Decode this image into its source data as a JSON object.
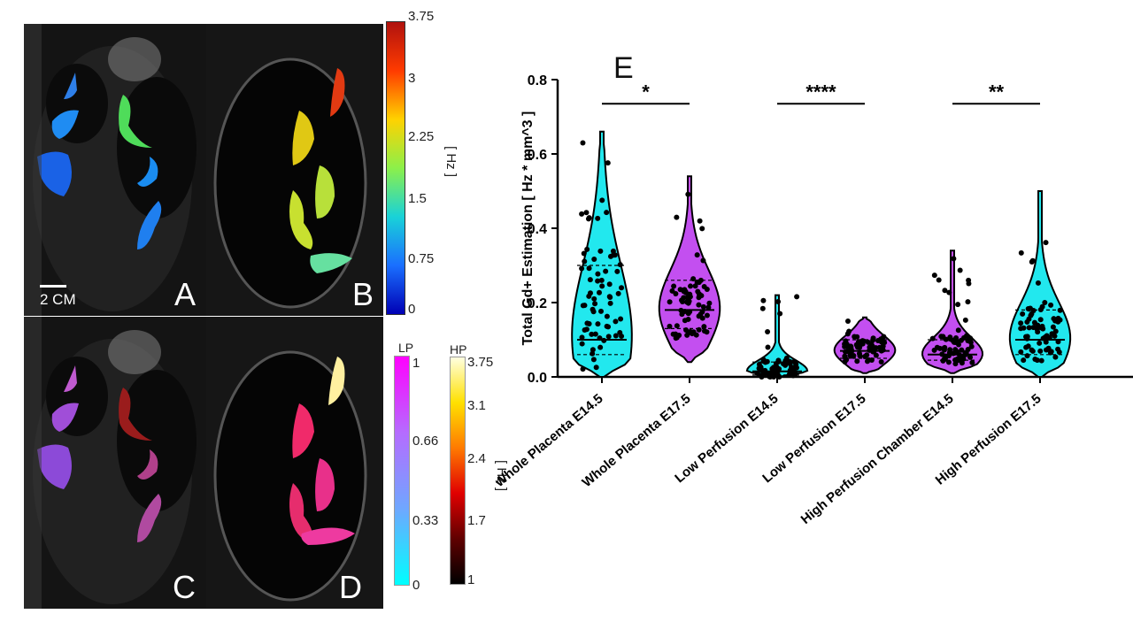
{
  "panels": {
    "a_label": "A",
    "b_label": "B",
    "c_label": "C",
    "d_label": "D",
    "scale_bar_label": "2 CM"
  },
  "colorbar_top": {
    "ticks": [
      "3.75",
      "3",
      "2.25",
      "1.5",
      "0.75",
      "0"
    ],
    "unit": "[ Hz ]",
    "colors": [
      "#b0120e",
      "#ff3b00",
      "#ffd200",
      "#8cf04a",
      "#19d2d8",
      "#1a6fff",
      "#0000b4"
    ]
  },
  "colorbar_lp": {
    "header": "LP",
    "ticks": [
      "1",
      "0.66",
      "0.33",
      "0"
    ],
    "colors": [
      "#ff00ff",
      "#b56cff",
      "#6fa7ff",
      "#00ffff"
    ]
  },
  "colorbar_hp": {
    "header": "HP",
    "ticks": [
      "3.75",
      "3.1",
      "2.4",
      "1.7",
      "1"
    ],
    "unit": "[ Hz ]",
    "colors": [
      "#ffffe0",
      "#ffe000",
      "#ff7a00",
      "#e00000",
      "#600000",
      "#000000"
    ]
  },
  "chart_data": {
    "type": "violin",
    "panel_label": "E",
    "title": "",
    "xlabel": "",
    "ylabel": "Total Gd+ Estimation [ Hz * mm^3 ]",
    "ylim": [
      0,
      0.8
    ],
    "yticks": [
      "0.0",
      "0.2",
      "0.4",
      "0.6",
      "0.8"
    ],
    "categories": [
      "Whole Placenta E14.5",
      "Whole Placenta E17.5",
      "Low Perfusion E14.5",
      "Low Perfusion E17.5",
      "High Perfusion Chamber E14.5",
      "High Perfusion E17.5"
    ],
    "series": [
      {
        "name": "Whole Placenta E14.5",
        "color": "#22e8ee",
        "min": 0.0,
        "max": 0.66,
        "median": 0.1,
        "q1": 0.06,
        "q3": 0.3
      },
      {
        "name": "Whole Placenta E17.5",
        "color": "#c34ff0",
        "min": 0.04,
        "max": 0.54,
        "median": 0.18,
        "q1": 0.13,
        "q3": 0.26
      },
      {
        "name": "Low Perfusion E14.5",
        "color": "#22e8ee",
        "min": 0.0,
        "max": 0.22,
        "median": 0.015,
        "q1": 0.005,
        "q3": 0.04
      },
      {
        "name": "Low Perfusion E17.5",
        "color": "#c34ff0",
        "min": 0.01,
        "max": 0.16,
        "median": 0.07,
        "q1": 0.05,
        "q3": 0.1
      },
      {
        "name": "High Perfusion Chamber E14.5",
        "color": "#c34ff0",
        "min": 0.01,
        "max": 0.34,
        "median": 0.06,
        "q1": 0.045,
        "q3": 0.1
      },
      {
        "name": "High Perfusion E17.5",
        "color": "#22e8ee",
        "min": 0.0,
        "max": 0.5,
        "median": 0.1,
        "q1": 0.06,
        "q3": 0.18
      }
    ],
    "annotations": [
      {
        "label": "*",
        "from": 0,
        "to": 1,
        "y": 0.735
      },
      {
        "label": "****",
        "from": 2,
        "to": 3,
        "y": 0.735
      },
      {
        "label": "**",
        "from": 4,
        "to": 5,
        "y": 0.735
      }
    ]
  }
}
